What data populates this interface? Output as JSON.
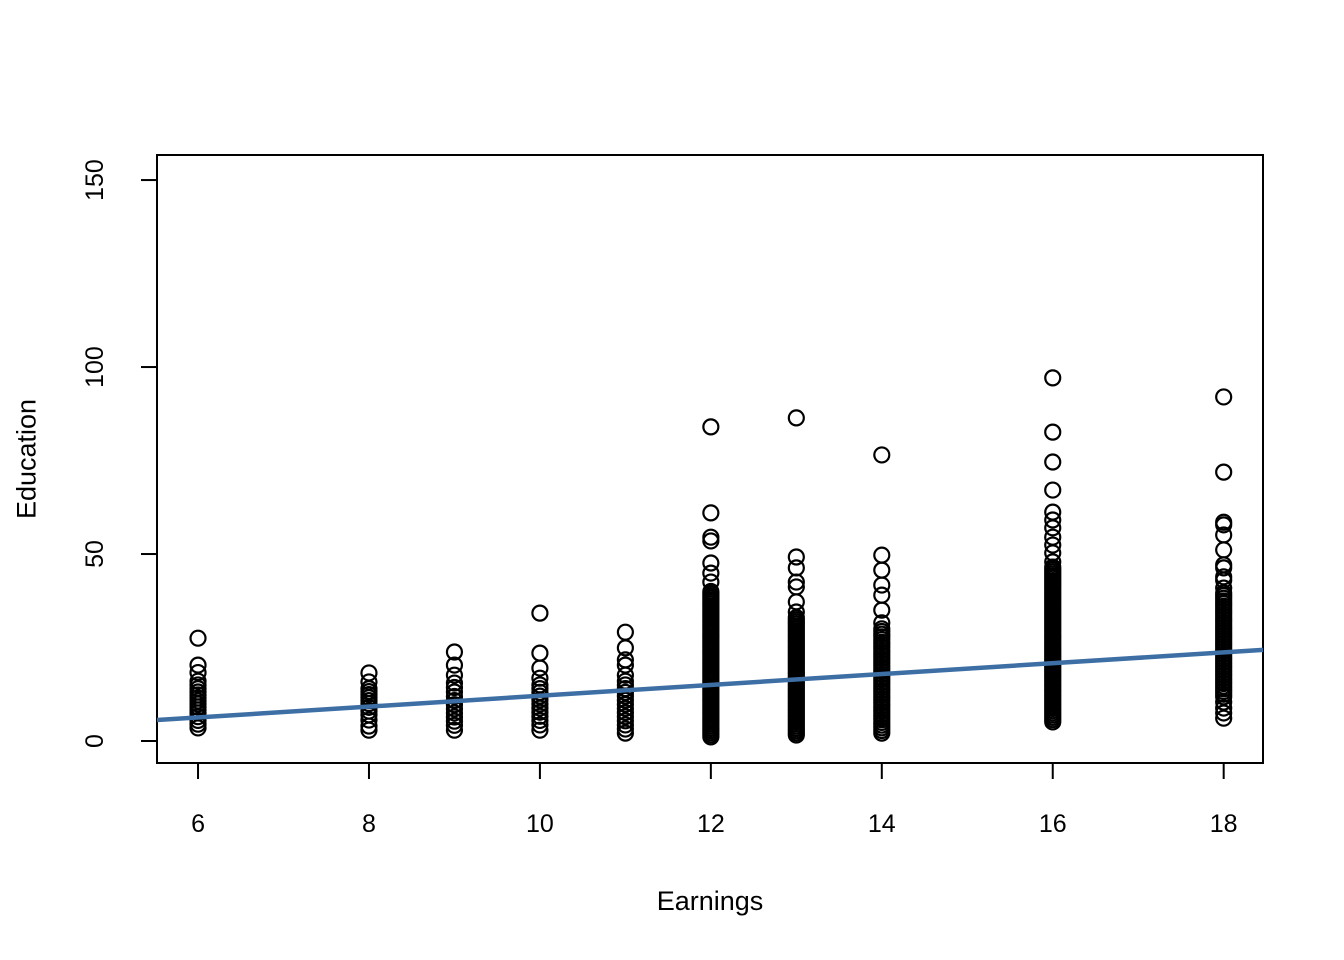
{
  "chart_data": {
    "type": "scatter",
    "title": "",
    "xlabel": "Earnings",
    "ylabel": "Education",
    "xticks": [
      6,
      8,
      10,
      12,
      14,
      16,
      18
    ],
    "yticks": [
      0,
      50,
      100,
      150
    ],
    "xlim": [
      5.52,
      18.46
    ],
    "ylim": [
      -5.88,
      156.7
    ],
    "grid": false,
    "legend": "none",
    "point_style": {
      "shape": "open-circle",
      "color": "#000000"
    },
    "regression_line": {
      "intercept": -2.4,
      "slope": 1.45,
      "color": "#3d6fa5"
    },
    "clusters": [
      {
        "x": 6,
        "points": [
          3.5,
          4.5,
          5.5,
          6.5,
          7.5,
          8.3,
          9.1,
          9.9,
          10.7,
          11.5,
          12.3,
          13.1,
          14,
          15,
          16,
          18.3,
          20.3,
          27.5
        ],
        "dense": null
      },
      {
        "x": 8,
        "points": [
          2.9,
          4,
          5.6,
          7,
          8,
          9,
          10,
          10.8,
          11.6,
          12.4,
          13.2,
          14,
          15.8,
          18.2
        ],
        "dense": null
      },
      {
        "x": 9,
        "points": [
          2.9,
          4.2,
          5.3,
          6.4,
          7.5,
          8.6,
          9.7,
          10.8,
          11.9,
          13.1,
          14.3,
          15.5,
          17.6,
          20.3,
          23.8
        ],
        "dense": null
      },
      {
        "x": 10,
        "points": [
          2.9,
          4.3,
          5.5,
          6.6,
          7.7,
          8.8,
          9.9,
          11,
          12,
          13,
          14,
          15,
          16.8,
          19.5,
          23.5,
          34.2
        ],
        "dense": null
      },
      {
        "x": 11,
        "points": [
          2.1,
          3.2,
          4.3,
          5.4,
          6.5,
          7.6,
          8.7,
          9.8,
          10.9,
          12,
          13,
          14,
          15,
          16,
          17.6,
          20.3,
          21.7,
          24.9,
          29.1
        ],
        "dense": null
      },
      {
        "x": 12,
        "points": [
          42.5,
          44.9,
          47.6,
          53.5,
          54.5,
          61,
          84
        ],
        "dense": {
          "min": 1.1,
          "max": 40,
          "n": 70
        }
      },
      {
        "x": 13,
        "points": [
          34.5,
          37.2,
          41.2,
          42.5,
          46.3,
          49.2,
          86.4
        ],
        "dense": {
          "min": 1.6,
          "max": 33,
          "n": 55
        }
      },
      {
        "x": 14,
        "points": [
          31.6,
          35,
          39,
          41.7,
          45.7,
          49.7,
          76.5
        ],
        "dense": {
          "min": 2.1,
          "max": 30,
          "n": 40
        }
      },
      {
        "x": 16,
        "points": [
          47.9,
          50.3,
          52.4,
          54.5,
          57,
          59.1,
          61.2,
          67.1,
          74.6,
          82.6,
          97.1
        ],
        "dense": {
          "min": 5.1,
          "max": 46.5,
          "n": 70
        }
      },
      {
        "x": 18,
        "points": [
          6.1,
          7.5,
          8.8,
          10.4,
          40.9,
          43,
          43.9,
          46.3,
          47.1,
          51.1,
          55.1,
          57.8,
          58.5,
          71.9,
          92
        ],
        "dense": {
          "min": 11.8,
          "max": 39.6,
          "n": 40
        }
      }
    ]
  }
}
